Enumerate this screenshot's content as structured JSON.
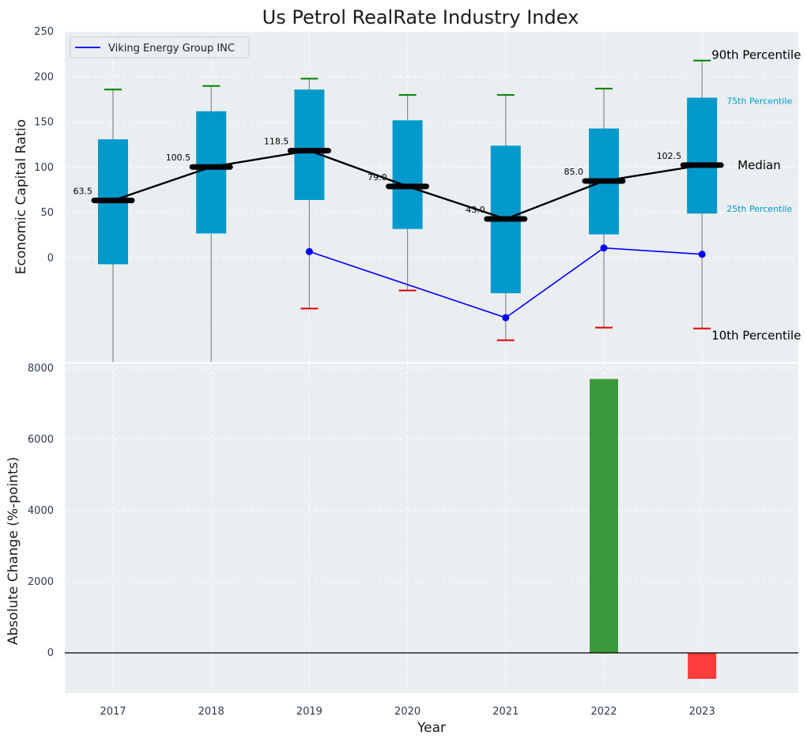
{
  "chart_data": [
    {
      "type": "box",
      "title": "Us Petrol RealRate Industry Index",
      "ylabel": "Economic Capital Ratio",
      "ylim": [
        -115,
        250
      ],
      "yticks": [
        0,
        50,
        100,
        150,
        200,
        250
      ],
      "categories": [
        "2017",
        "2018",
        "2019",
        "2020",
        "2021",
        "2022",
        "2023"
      ],
      "p10": [
        null,
        null,
        -56,
        -36,
        -91,
        -77,
        -78
      ],
      "p25": [
        -7,
        27,
        64,
        32,
        -39,
        26,
        49
      ],
      "median": [
        63.5,
        100.5,
        118.5,
        79.0,
        43.0,
        85.0,
        102.5
      ],
      "p75": [
        131,
        162,
        186,
        152,
        124,
        143,
        177
      ],
      "p90": [
        186,
        190,
        198,
        180,
        180,
        187,
        218
      ],
      "median_labels": [
        "63.5",
        "100.5",
        "118.5",
        "79.0",
        "43.0",
        "85.0",
        "102.5"
      ],
      "series": [
        {
          "name": "Viking Energy Group INC",
          "color": "#0000ff",
          "values": [
            null,
            null,
            7,
            null,
            -66,
            11,
            4
          ]
        }
      ],
      "annotations": {
        "p90": "90th Percentile",
        "p75": "75th Percentile",
        "median": "Median",
        "p25": "25th Percentile",
        "p10": "10th Percentile"
      },
      "colors": {
        "box": "#0099cc",
        "median_line": "#000000",
        "whisker": "#888888",
        "p90_cap": "#008000",
        "p10_cap": "#dd0000",
        "background": "#eaeef0"
      },
      "legend": "top-left"
    },
    {
      "type": "bar",
      "xlabel": "Year",
      "ylabel": "Absolute Change (%-points)",
      "categories": [
        "2017",
        "2018",
        "2019",
        "2020",
        "2021",
        "2022",
        "2023"
      ],
      "values": [
        null,
        null,
        null,
        null,
        null,
        7700,
        -730
      ],
      "ylim": [
        -1100,
        8000
      ],
      "yticks": [
        0,
        2000,
        4000,
        6000,
        8000
      ],
      "colors": {
        "positive": "#3a993a",
        "negative": "#ff3b3b"
      }
    }
  ]
}
